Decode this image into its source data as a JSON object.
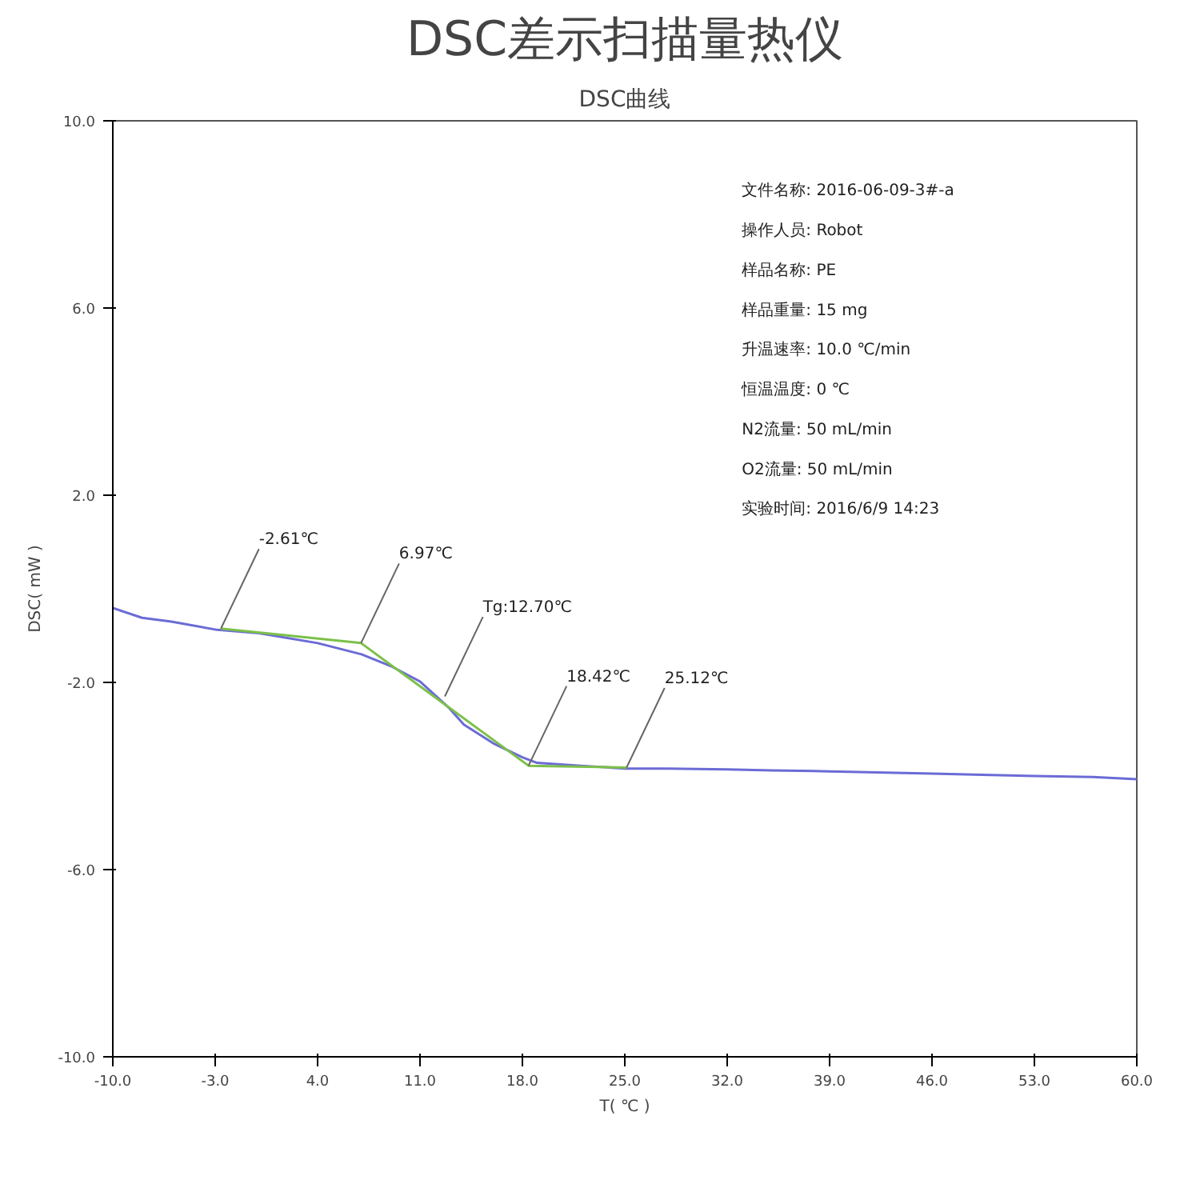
{
  "chart_data": {
    "type": "line",
    "title": "DSC差示扫描量热仪",
    "subtitle": "DSC曲线",
    "xlabel": "T( ℃ )",
    "ylabel": "DSC( mW )",
    "series": [
      {
        "color": "#6b6bd6",
        "x": [
          -10,
          -8,
          -6,
          -3,
          0,
          4,
          7,
          9,
          11,
          13,
          14,
          16,
          18,
          19,
          22,
          25,
          28,
          32,
          35,
          39,
          46,
          50,
          53,
          57,
          60
        ],
        "values": [
          -0.41,
          -0.62,
          -0.7,
          -0.87,
          -0.95,
          -1.16,
          -1.4,
          -1.65,
          -1.98,
          -2.55,
          -2.9,
          -3.3,
          -3.6,
          -3.72,
          -3.78,
          -3.84,
          -3.84,
          -3.86,
          -3.88,
          -3.9,
          -3.95,
          -3.98,
          -4.0,
          -4.02,
          -4.07
        ]
      },
      {
        "color": "#7cc04a",
        "x": [
          -2.61,
          6.97,
          18.42,
          25.12
        ],
        "values": [
          -0.85,
          -1.16,
          -3.78,
          -3.82
        ]
      }
    ],
    "annotations": [
      {
        "text": "-2.61℃",
        "x": -2.61,
        "y": -0.85
      },
      {
        "text": "6.97℃",
        "x": 6.97,
        "y": -1.16
      },
      {
        "text": "Tg:12.70℃",
        "x": 12.7,
        "y": -2.3
      },
      {
        "text": "18.42℃",
        "x": 18.42,
        "y": -3.78
      },
      {
        "text": "25.12℃",
        "x": 25.12,
        "y": -3.82
      },
      "文件名称:  2016-06-09-3#-a",
      "操作人员:  Robot",
      "样品名称:  PE",
      "样品重量:  15 mg",
      "升温速率:  10.0 ℃/min",
      "恒温温度:  0 ℃",
      "N2流量:  50 mL/min",
      "O2流量:  50 mL/min",
      "实验时间:  2016/6/9 14:23"
    ],
    "xlim": [
      -10,
      60
    ],
    "ylim": [
      -10,
      10
    ],
    "xticks": [
      {
        "value": -10,
        "label": "-10.0"
      },
      {
        "value": -3,
        "label": "-3.0"
      },
      {
        "value": 4,
        "label": "4.0"
      },
      {
        "value": 11,
        "label": "11.0"
      },
      {
        "value": 18,
        "label": "18.0"
      },
      {
        "value": 25,
        "label": "25.0"
      },
      {
        "value": 32,
        "label": "32.0"
      },
      {
        "value": 39,
        "label": "39.0"
      },
      {
        "value": 46,
        "label": "46.0"
      },
      {
        "value": 53,
        "label": "53.0"
      },
      {
        "value": 60,
        "label": "60.0"
      }
    ],
    "yticks": [
      {
        "value": -10,
        "label": "-10.0"
      },
      {
        "value": -6,
        "label": "-6.0"
      },
      {
        "value": -2,
        "label": "-2.0"
      },
      {
        "value": 2,
        "label": "2.0"
      },
      {
        "value": 6,
        "label": "6.0"
      },
      {
        "value": 10,
        "label": "10.0"
      }
    ],
    "grid": false,
    "marker": "none",
    "line_style": "solid"
  }
}
